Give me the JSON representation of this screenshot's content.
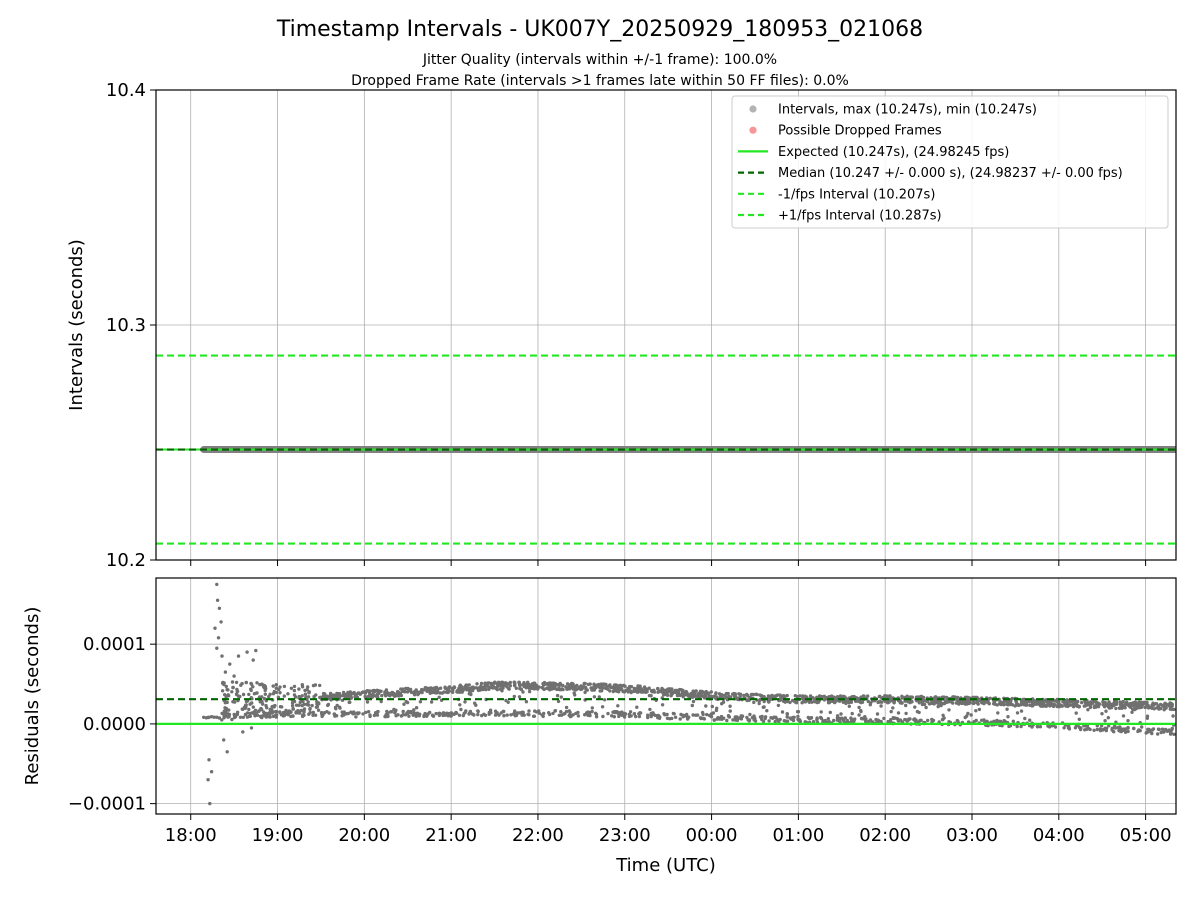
{
  "chart_data": [
    {
      "type": "scatter",
      "panel": "top",
      "title": "Timestamp Intervals - UK007Y_20250929_180953_021068",
      "subtitles": [
        "Jitter Quality (intervals within +/-1 frame): 100.0%",
        "Dropped Frame Rate (intervals >1 frames late within 50 FF files): 0.0%"
      ],
      "xlabel": "Time (UTC)",
      "ylabel": "Intervals (seconds)",
      "xlim_hours": [
        17.6,
        29.35
      ],
      "ylim": [
        10.2,
        10.4
      ],
      "yticks": [
        10.2,
        10.3,
        10.4
      ],
      "ytick_labels": [
        "10.2",
        "10.3",
        "10.4"
      ],
      "grid": true,
      "legend_position": "top-right",
      "series": [
        {
          "name": "Intervals, max (10.247s), min (10.247s)",
          "kind": "scatter",
          "color": "#808080",
          "value": 10.247,
          "x_range_hours": [
            18.15,
            29.35
          ]
        },
        {
          "name": "Possible Dropped Frames",
          "kind": "scatter",
          "color": "#f05050",
          "values": []
        },
        {
          "name": "Expected (10.247s), (24.98245 fps)",
          "kind": "hline",
          "style": "solid",
          "color": "#22e822",
          "value": 10.247
        },
        {
          "name": "Median (10.247 +/- 0.000 s), (24.98237 +/- 0.00 fps)",
          "kind": "hline",
          "style": "dashed",
          "color": "#006400",
          "value": 10.247
        },
        {
          "name": "-1/fps Interval (10.207s)",
          "kind": "hline",
          "style": "dashed",
          "color": "#22e822",
          "value": 10.207
        },
        {
          "name": "+1/fps Interval (10.287s)",
          "kind": "hline",
          "style": "dashed",
          "color": "#22e822",
          "value": 10.287
        }
      ]
    },
    {
      "type": "scatter",
      "panel": "bottom",
      "xlabel": "Time (UTC)",
      "ylabel": "Residuals (seconds)",
      "xlim_hours": [
        17.6,
        29.35
      ],
      "ylim": [
        -0.000113,
        0.000183
      ],
      "yticks": [
        -0.0001,
        0.0,
        0.0001
      ],
      "ytick_labels": [
        "−0.0001",
        "0.0000",
        "0.0001"
      ],
      "xticks_hours": [
        18,
        19,
        20,
        21,
        22,
        23,
        24,
        25,
        26,
        27,
        28,
        29
      ],
      "xtick_labels": [
        "18:00",
        "19:00",
        "20:00",
        "21:00",
        "22:00",
        "23:00",
        "00:00",
        "01:00",
        "02:00",
        "03:00",
        "04:00",
        "05:00"
      ],
      "grid": true,
      "zero_line": {
        "value": 0.0,
        "color": "#22e822"
      },
      "median_line": {
        "value": 3.1e-05,
        "color": "#006400"
      },
      "trend_upper": [
        [
          18.35,
          3e-05
        ],
        [
          19.0,
          3e-05
        ],
        [
          20.0,
          3.7e-05
        ],
        [
          21.0,
          4.3e-05
        ],
        [
          21.5,
          4.8e-05
        ],
        [
          22.0,
          4.8e-05
        ],
        [
          22.7,
          4.6e-05
        ],
        [
          23.2,
          4.3e-05
        ],
        [
          23.7,
          3.8e-05
        ],
        [
          24.2,
          3.4e-05
        ],
        [
          25.0,
          3.1e-05
        ],
        [
          26.0,
          3.1e-05
        ],
        [
          27.0,
          2.9e-05
        ],
        [
          28.0,
          2.6e-05
        ],
        [
          29.3,
          2.2e-05
        ]
      ],
      "trend_lower": [
        [
          18.35,
          1e-05
        ],
        [
          19.0,
          1.2e-05
        ],
        [
          20.0,
          1.2e-05
        ],
        [
          21.0,
          1.3e-05
        ],
        [
          22.0,
          1.3e-05
        ],
        [
          23.0,
          1.2e-05
        ],
        [
          24.0,
          8e-06
        ],
        [
          25.0,
          5e-06
        ],
        [
          26.0,
          4e-06
        ],
        [
          27.0,
          2e-06
        ],
        [
          28.0,
          -2e-06
        ],
        [
          29.0,
          -9e-06
        ],
        [
          29.3,
          -1e-05
        ]
      ],
      "early_points": [
        [
          18.2,
          8e-06
        ],
        [
          18.22,
          -0.0001
        ],
        [
          18.2,
          -7e-05
        ],
        [
          18.21,
          -4.5e-05
        ],
        [
          18.24,
          -6e-05
        ],
        [
          18.3,
          0.000175
        ],
        [
          18.31,
          0.000155
        ],
        [
          18.33,
          0.000145
        ],
        [
          18.35,
          0.000128
        ],
        [
          18.28,
          0.00012
        ],
        [
          18.32,
          0.000108
        ],
        [
          18.36,
          8.5e-05
        ],
        [
          18.4,
          6.5e-05
        ],
        [
          18.3,
          9.5e-05
        ],
        [
          18.45,
          7.5e-05
        ],
        [
          18.55,
          8.5e-05
        ],
        [
          18.65,
          9e-05
        ],
        [
          18.75,
          9.2e-05
        ],
        [
          18.72,
          8e-05
        ],
        [
          18.5,
          6e-05
        ],
        [
          18.42,
          -3.5e-05
        ],
        [
          18.38,
          -2e-05
        ],
        [
          18.6,
          -1e-05
        ],
        [
          18.7,
          -5e-06
        ]
      ]
    }
  ]
}
